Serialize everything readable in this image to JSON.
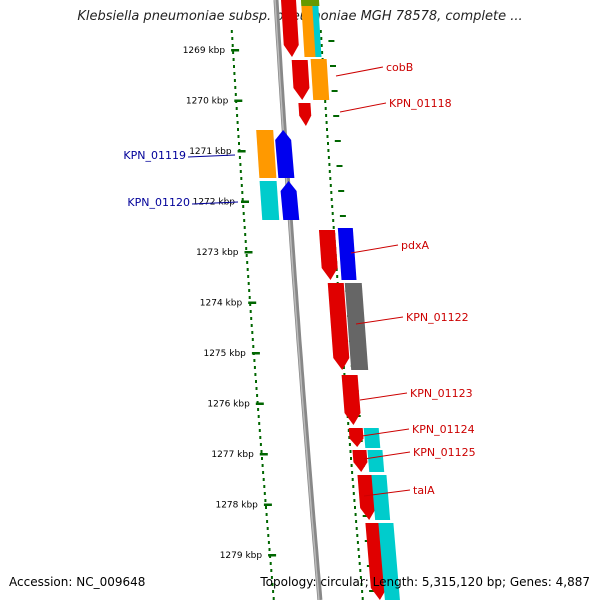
{
  "title": "Klebsiella pneumoniae subsp. pneumoniae MGH 78578, complete ...",
  "footer": {
    "accession": "Accession: NC_009648",
    "info": "Topology: circular; Length: 5,315,120 bp; Genes: 4,887"
  },
  "colors": {
    "red": "#e00000",
    "orange": "#ff9900",
    "blue": "#0000ee",
    "cyan": "#00cccc",
    "gray": "#666666",
    "olive": "#669900",
    "backbone": "#888888",
    "tick_green": "#006600",
    "label_red": "#cc0000",
    "label_blue": "#000099"
  },
  "ticks": [
    "1269 kbp",
    "1270 kbp",
    "1271 kbp",
    "1272 kbp",
    "1273 kbp",
    "1274 kbp",
    "1275 kbp",
    "1276 kbp",
    "1277 kbp",
    "1278 kbp",
    "1279 kbp"
  ],
  "gene_labels": [
    {
      "text": "cobB",
      "strand": "forward"
    },
    {
      "text": "KPN_01118",
      "strand": "forward"
    },
    {
      "text": "KPN_01119",
      "strand": "reverse"
    },
    {
      "text": "KPN_01120",
      "strand": "reverse"
    },
    {
      "text": "pdxA",
      "strand": "forward"
    },
    {
      "text": "KPN_01122",
      "strand": "forward"
    },
    {
      "text": "KPN_01123",
      "strand": "forward"
    },
    {
      "text": "KPN_01124",
      "strand": "forward"
    },
    {
      "text": "KPN_01125",
      "strand": "forward"
    },
    {
      "text": "talA",
      "strand": "forward"
    }
  ],
  "features": [
    {
      "lane": "outer-forward",
      "color": "red",
      "kind": "arrow"
    },
    {
      "lane": "outer-forward",
      "color": "red",
      "kind": "arrow"
    },
    {
      "lane": "outer-forward",
      "color": "red",
      "kind": "arrow"
    },
    {
      "lane": "outer-forward",
      "color": "red",
      "kind": "arrow"
    },
    {
      "lane": "outer-forward",
      "color": "red",
      "kind": "arrow"
    },
    {
      "lane": "outer-forward",
      "color": "red",
      "kind": "arrow"
    },
    {
      "lane": "outer-forward",
      "color": "red",
      "kind": "arrow"
    },
    {
      "lane": "outer-forward",
      "color": "red",
      "kind": "arrow"
    },
    {
      "lane": "outer-forward",
      "color": "red",
      "kind": "arrow"
    },
    {
      "lane": "outer-forward",
      "color": "red",
      "kind": "arrow"
    },
    {
      "lane": "inner-forward",
      "color": "orange",
      "kind": "box"
    },
    {
      "lane": "inner-forward",
      "color": "orange",
      "kind": "box"
    },
    {
      "lane": "inner-forward",
      "color": "cyan",
      "kind": "box"
    },
    {
      "lane": "inner-forward",
      "color": "olive",
      "kind": "box"
    },
    {
      "lane": "inner-forward",
      "color": "blue",
      "kind": "box"
    },
    {
      "lane": "inner-forward",
      "color": "gray",
      "kind": "box"
    },
    {
      "lane": "inner-forward",
      "color": "cyan",
      "kind": "box"
    },
    {
      "lane": "inner-forward",
      "color": "cyan",
      "kind": "box"
    },
    {
      "lane": "inner-forward",
      "color": "cyan",
      "kind": "box"
    },
    {
      "lane": "inner-forward",
      "color": "cyan",
      "kind": "box"
    },
    {
      "lane": "reverse",
      "color": "orange",
      "kind": "box"
    },
    {
      "lane": "reverse",
      "color": "cyan",
      "kind": "box"
    },
    {
      "lane": "reverse",
      "color": "blue",
      "kind": "arrow"
    },
    {
      "lane": "reverse",
      "color": "blue",
      "kind": "arrow"
    }
  ]
}
